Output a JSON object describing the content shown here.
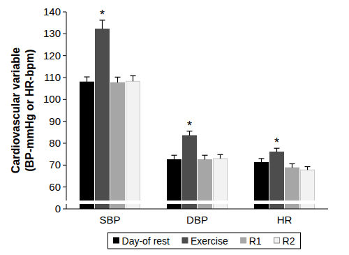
{
  "chart_data": {
    "type": "bar",
    "ylabel": [
      "Cardiovascular variable",
      "(BP-mmHg or HR-bpm)"
    ],
    "categories": [
      "SBP",
      "DBP",
      "HR"
    ],
    "series": [
      {
        "name": "Day-of rest",
        "color": "#000000",
        "values": [
          108,
          72.5,
          71.2
        ],
        "errors": [
          2.3,
          2,
          1.8
        ]
      },
      {
        "name": "Exercise",
        "color": "#4d4d4d",
        "values": [
          132.2,
          83.5,
          76
        ],
        "errors": [
          4,
          2,
          1.7
        ],
        "significance": [
          "*",
          "*",
          "*"
        ]
      },
      {
        "name": "R1",
        "color": "#a6a6a6",
        "values": [
          107.7,
          72.5,
          68.8
        ],
        "errors": [
          2.5,
          2,
          1.8
        ]
      },
      {
        "name": "R2",
        "color": "#f2f2f2",
        "values": [
          108.3,
          73,
          67.8
        ],
        "errors": [
          2.5,
          1.8,
          1.5
        ]
      }
    ],
    "ylim": [
      0,
      140
    ],
    "yticks": [
      0,
      60,
      70,
      80,
      90,
      100,
      110,
      120,
      130,
      140
    ],
    "grid": false,
    "legend": "bottom"
  }
}
